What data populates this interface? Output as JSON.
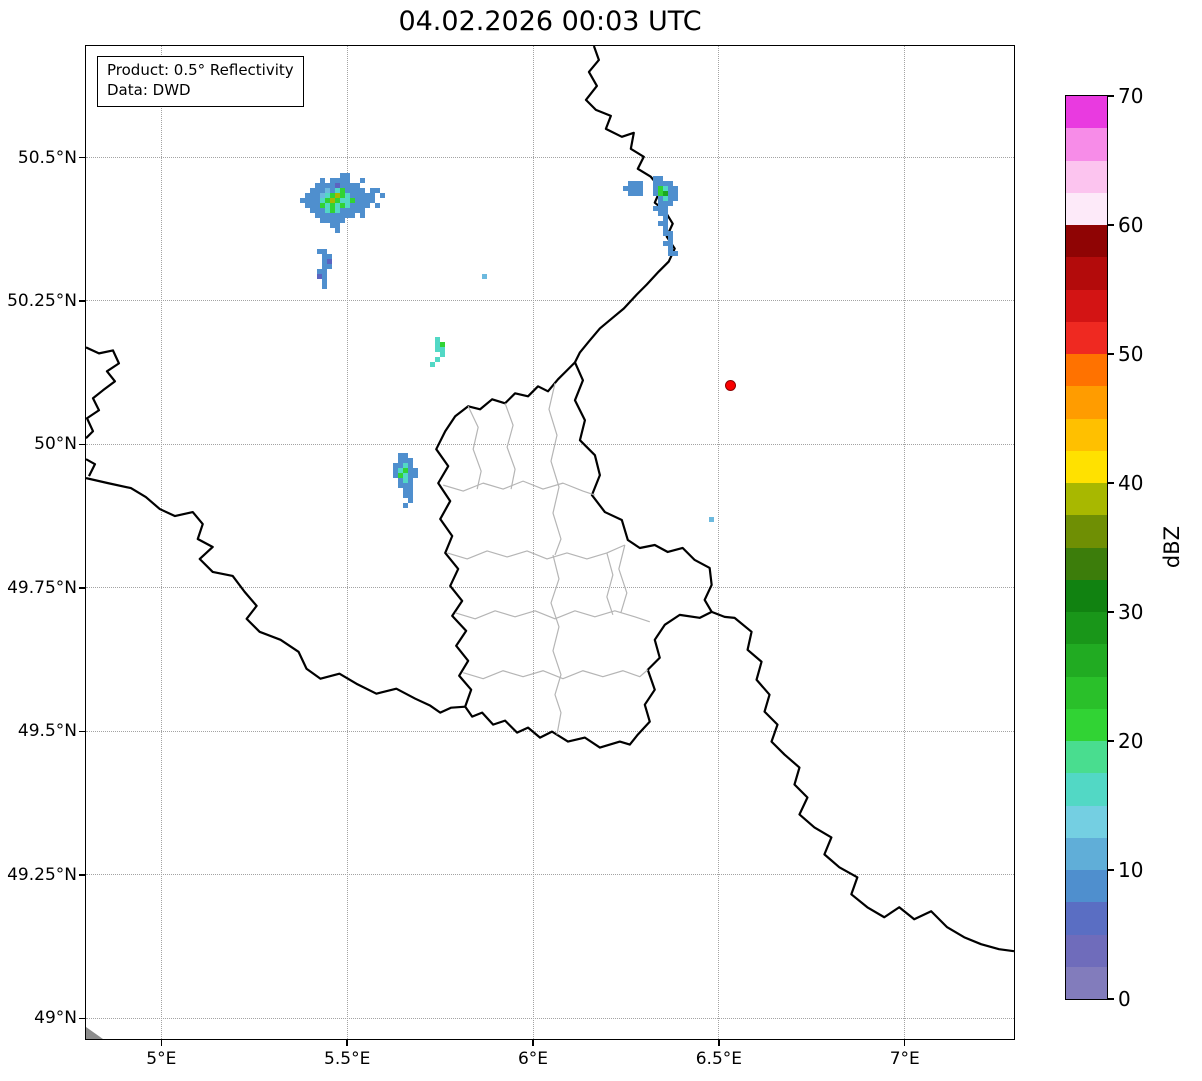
{
  "title": "04.02.2026 00:03 UTC",
  "info_box": {
    "product": "Product: 0.5° Reflectivity",
    "source": "Data: DWD"
  },
  "map": {
    "lon_min": 4.7987,
    "lon_max": 7.2953,
    "lat_min": 48.963,
    "lat_max": 50.6935,
    "lon_ticks": [
      {
        "value": 5.0,
        "label": "5°E"
      },
      {
        "value": 5.5,
        "label": "5.5°E"
      },
      {
        "value": 6.0,
        "label": "6°E"
      },
      {
        "value": 6.5,
        "label": "6.5°E"
      },
      {
        "value": 7.0,
        "label": "7°E"
      }
    ],
    "lat_ticks": [
      {
        "value": 50.5,
        "label": "50.5°N"
      },
      {
        "value": 50.25,
        "label": "50.25°N"
      },
      {
        "value": 50.0,
        "label": "50°N"
      },
      {
        "value": 49.75,
        "label": "49.75°N"
      },
      {
        "value": 49.5,
        "label": "49.5°N"
      },
      {
        "value": 49.25,
        "label": "49.25°N"
      },
      {
        "value": 49.0,
        "label": "49°N"
      }
    ],
    "marker": {
      "lon": 6.533,
      "lat": 50.102,
      "color": "#fa0000",
      "edge": "#8b0000"
    }
  },
  "colorbar": {
    "label": "dBZ",
    "min": 0,
    "max": 70,
    "step": 2.5,
    "ticks": [
      0,
      10,
      20,
      30,
      40,
      50,
      60,
      70
    ],
    "colors": [
      "#827cbc",
      "#6f6cbb",
      "#5a6ec3",
      "#4f8fce",
      "#60aed8",
      "#74cfe2",
      "#52d8c5",
      "#49dd8f",
      "#31d334",
      "#2ac02a",
      "#21ab22",
      "#199619",
      "#118211",
      "#3c7d0b",
      "#6f8f04",
      "#a8b800",
      "#ffe100",
      "#ffc000",
      "#ff9c00",
      "#ff7200",
      "#ef2921",
      "#d31414",
      "#b30b0b",
      "#8f0404",
      "#fdeaf9",
      "#fcc4ef",
      "#f78ce8",
      "#e93ae0"
    ]
  },
  "echo_palette": {
    "B": "#5c63c0",
    "b": "#4f8fce",
    "l": "#6cb9de",
    "c": "#52d8c5",
    "g": "#31d334",
    "G": "#1ca81f",
    "y": "#a8b800"
  },
  "echoes": [
    {
      "name": "echo-cluster-northwest",
      "lon": 5.3757,
      "lat": 50.4721,
      "rows": [
        "........bb........",
        "....b.bbbb..b.....",
        "...bbbbBbbbb......",
        "..bbblbcgbbbb.bb..",
        ".bbblcgygcbbbbb.b.",
        "bbbbcgygccgbbbb...",
        ".bbbgcgcgcbbbb.b..",
        "..bbbcgcbbbbb.....",
        "...bbbbbbbb.b.....",
        "....bbbbb.........",
        "......bb..........",
        ".......b.........."
      ]
    },
    {
      "name": "echo-cluster-northwest-south",
      "lon": 5.4214,
      "lat": 50.34,
      "rows": [
        "bb..",
        ".bb.",
        ".bB.",
        ".bb.",
        "bb..",
        "Bb..",
        ".b..",
        ".b.."
      ]
    },
    {
      "name": "echo-speck-central",
      "lon": 5.864,
      "lat": 50.2965,
      "rows": [
        "l"
      ]
    },
    {
      "name": "echo-cluster-northeast-border",
      "lon": 6.229,
      "lat": 50.467,
      "rows": [
        ".......bb.....",
        "..bbb..bbbb...",
        ".bbbb..bgcbb..",
        "..bbb..bgGbb..",
        "........bcbb..",
        "........bbb...",
        ".......bbb....",
        "........bb....",
        ".........b....",
        "........bb....",
        ".........b....",
        ".........bb...",
        "..........b...",
        ".........bb...",
        "..........b...",
        "..........bb.."
      ]
    },
    {
      "name": "echo-streak-central",
      "lon": 5.7246,
      "lat": 50.187,
      "rows": [
        ".c.",
        ".cg",
        ".cc",
        "..c",
        ".c.",
        "c.."
      ]
    },
    {
      "name": "echo-cluster-west",
      "lon": 5.625,
      "lat": 49.985,
      "rows": [
        ".bb...",
        ".bbb..",
        "bbcb..",
        "bcgbb.",
        "bgcbb.",
        ".bcb..",
        ".bbb..",
        "..bb..",
        "..bb..",
        "...b..",
        "..b..."
      ]
    },
    {
      "name": "echo-speck-east",
      "lon": 6.476,
      "lat": 49.872,
      "rows": [
        "l"
      ]
    }
  ]
}
